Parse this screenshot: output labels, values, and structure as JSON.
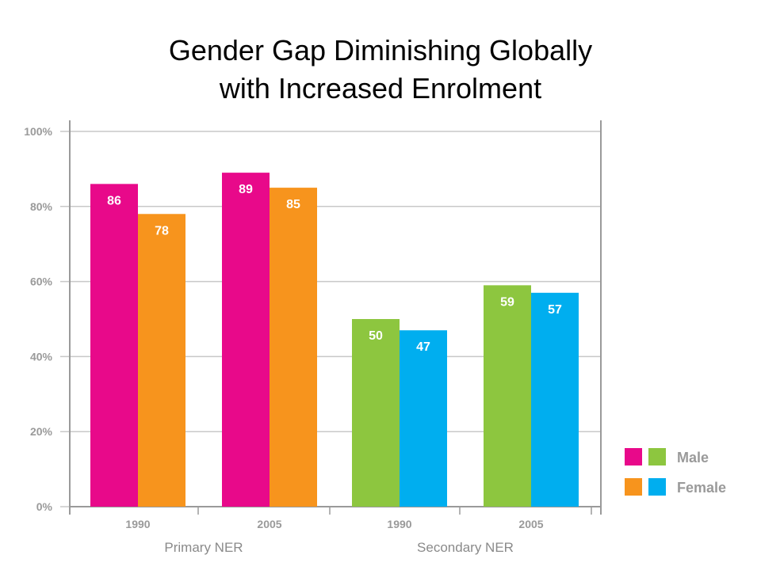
{
  "chart_data": {
    "type": "bar",
    "title": "Gender Gap Diminishing Globally with Increased Enrolment",
    "title_lines": [
      "Gender Gap Diminishing Globally",
      "with Increased Enrolment"
    ],
    "xlabel": "",
    "ylabel": "",
    "ylim": [
      0,
      100
    ],
    "y_ticks": [
      0,
      20,
      40,
      60,
      80,
      100
    ],
    "y_tick_labels": [
      "0%",
      "20%",
      "40%",
      "60%",
      "80%",
      "100%"
    ],
    "grid": true,
    "legend_position": "bottom-right",
    "groups": [
      {
        "label": "Primary NER",
        "categories": [
          {
            "label": "1990",
            "male": 86,
            "female": 78
          },
          {
            "label": "2005",
            "male": 89,
            "female": 85
          }
        ],
        "colors": {
          "male": "#e8098a",
          "female": "#f7941d"
        }
      },
      {
        "label": "Secondary NER",
        "categories": [
          {
            "label": "1990",
            "male": 50,
            "female": 47
          },
          {
            "label": "2005",
            "male": 59,
            "female": 57
          }
        ],
        "colors": {
          "male": "#8dc63f",
          "female": "#00aeef"
        }
      }
    ],
    "categories": [
      "1990",
      "2005",
      "1990",
      "2005"
    ],
    "series": [
      {
        "name": "Male",
        "values": [
          86,
          89,
          50,
          59
        ]
      },
      {
        "name": "Female",
        "values": [
          78,
          85,
          47,
          57
        ]
      }
    ],
    "legend": [
      {
        "name": "Male",
        "colors": [
          "#e8098a",
          "#8dc63f"
        ]
      },
      {
        "name": "Female",
        "colors": [
          "#f7941d",
          "#00aeef"
        ]
      }
    ]
  }
}
